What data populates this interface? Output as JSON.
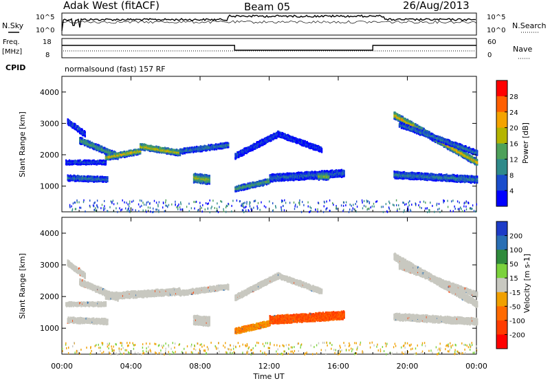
{
  "header": {
    "station": "Adak West (fitACF)",
    "beam": "Beam 05",
    "date": "26/Aug/2013"
  },
  "noise_panel": {
    "left_label": "N.Sky",
    "right_label": "N.Search",
    "left_ticks": [
      "10^5",
      "10^0"
    ],
    "right_ticks": [
      "10^5",
      "10^0"
    ]
  },
  "freq_panel": {
    "left_label_top": "Freq.",
    "left_label_bottom": "[MHz]",
    "right_label": "Nave",
    "left_ticks": [
      "18",
      "8"
    ],
    "right_ticks": [
      "60",
      "0"
    ]
  },
  "cpid": {
    "label": "CPID",
    "text": "normalsound (fast) 157 RF"
  },
  "xaxis": {
    "label": "Time UT",
    "ticks": [
      "00:00",
      "04:00",
      "08:00",
      "12:00",
      "16:00",
      "20:00",
      "00:00"
    ]
  },
  "colors": {
    "background_scatter": "#c8c8c0"
  },
  "chart_data": [
    {
      "type": "heatmap",
      "title": "",
      "ylabel": "Slant Range [km]",
      "xlabel": "",
      "xlim_hours": [
        0,
        24
      ],
      "ylim": [
        180,
        4500
      ],
      "yticks": [
        "1000",
        "2000",
        "3000",
        "4000"
      ],
      "colorbar": {
        "label": "Power [dB]",
        "ticks": [
          "4",
          "8",
          "12",
          "16",
          "20",
          "24",
          "28"
        ],
        "colors": [
          "#0000ff",
          "#1a4dcc",
          "#2f8a8a",
          "#4ea15a",
          "#b4b400",
          "#f4a300",
          "#ff5f00",
          "#ff0000"
        ]
      },
      "echo_bands": [
        {
          "t_start": 0.3,
          "t_end": 1.3,
          "r_start": 3100,
          "r_end": 2700,
          "width": 160,
          "power": 6
        },
        {
          "t_start": 1.0,
          "t_end": 3.2,
          "r_start": 2500,
          "r_end": 2000,
          "width": 180,
          "power": 14
        },
        {
          "t_start": 2.5,
          "t_end": 4.5,
          "r_start": 1950,
          "r_end": 2150,
          "width": 160,
          "power": 21
        },
        {
          "t_start": 4.5,
          "t_end": 6.8,
          "r_start": 2300,
          "r_end": 2100,
          "width": 170,
          "power": 20
        },
        {
          "t_start": 6.8,
          "t_end": 9.6,
          "r_start": 2150,
          "r_end": 2350,
          "width": 150,
          "power": 10
        },
        {
          "t_start": 0.2,
          "t_end": 2.5,
          "r_start": 1800,
          "r_end": 1800,
          "width": 120,
          "power": 6
        },
        {
          "t_start": 0.3,
          "t_end": 2.6,
          "r_start": 1300,
          "r_end": 1250,
          "width": 160,
          "power": 9
        },
        {
          "t_start": 7.6,
          "t_end": 8.5,
          "r_start": 1300,
          "r_end": 1250,
          "width": 280,
          "power": 17
        },
        {
          "t_start": 10.0,
          "t_end": 12.5,
          "r_start": 2000,
          "r_end": 2700,
          "width": 170,
          "power": 6
        },
        {
          "t_start": 12.5,
          "t_end": 15.0,
          "r_start": 2700,
          "r_end": 2200,
          "width": 150,
          "power": 5
        },
        {
          "t_start": 10.0,
          "t_end": 12.0,
          "r_start": 950,
          "r_end": 1200,
          "width": 160,
          "power": 14
        },
        {
          "t_start": 12.0,
          "t_end": 16.3,
          "r_start": 1300,
          "r_end": 1450,
          "width": 220,
          "power": 8
        },
        {
          "t_start": 14.8,
          "t_end": 15.4,
          "r_start": 1350,
          "r_end": 1350,
          "width": 200,
          "power": 17
        },
        {
          "t_start": 19.2,
          "t_end": 24.0,
          "r_start": 3300,
          "r_end": 1800,
          "width": 200,
          "power": 22
        },
        {
          "t_start": 19.5,
          "t_end": 24.0,
          "r_start": 3000,
          "r_end": 2100,
          "width": 150,
          "power": 10
        },
        {
          "t_start": 19.2,
          "t_end": 24.0,
          "r_start": 1400,
          "r_end": 1250,
          "width": 200,
          "power": 10
        }
      ]
    },
    {
      "type": "heatmap",
      "title": "",
      "ylabel": "Slant Range [km]",
      "xlabel": "Time UT",
      "xlim_hours": [
        0,
        24
      ],
      "ylim": [
        180,
        4500
      ],
      "yticks": [
        "1000",
        "2000",
        "3000",
        "4000"
      ],
      "colorbar": {
        "label": "Velocity [m s-1]",
        "ticks": [
          "200",
          "100",
          "50",
          "15",
          "-15",
          "-50",
          "-100",
          "-200"
        ],
        "colors": [
          "#1e3cc8",
          "#2a6fb4",
          "#2f8a3c",
          "#7bd23c",
          "#c8c8c0",
          "#f0a000",
          "#ff6a00",
          "#ff3c00",
          "#ff0000"
        ]
      },
      "echo_bands": [
        {
          "t_start": 0.3,
          "t_end": 1.3,
          "r_start": 3100,
          "r_end": 2700,
          "width": 160,
          "velocity": 0
        },
        {
          "t_start": 1.0,
          "t_end": 3.2,
          "r_start": 2500,
          "r_end": 2000,
          "width": 180,
          "velocity": 0
        },
        {
          "t_start": 2.5,
          "t_end": 6.8,
          "r_start": 2050,
          "r_end": 2200,
          "width": 200,
          "velocity": 0
        },
        {
          "t_start": 6.8,
          "t_end": 9.6,
          "r_start": 2150,
          "r_end": 2350,
          "width": 150,
          "velocity": 0
        },
        {
          "t_start": 0.2,
          "t_end": 2.5,
          "r_start": 1800,
          "r_end": 1800,
          "width": 120,
          "velocity": 0
        },
        {
          "t_start": 0.3,
          "t_end": 2.6,
          "r_start": 1300,
          "r_end": 1250,
          "width": 160,
          "velocity": 0
        },
        {
          "t_start": 7.6,
          "t_end": 8.5,
          "r_start": 1300,
          "r_end": 1250,
          "width": 280,
          "velocity": 0
        },
        {
          "t_start": 10.0,
          "t_end": 12.5,
          "r_start": 2000,
          "r_end": 2700,
          "width": 170,
          "velocity": 0
        },
        {
          "t_start": 12.5,
          "t_end": 15.0,
          "r_start": 2700,
          "r_end": 2200,
          "width": 150,
          "velocity": 0
        },
        {
          "t_start": 10.0,
          "t_end": 12.0,
          "r_start": 950,
          "r_end": 1200,
          "width": 160,
          "velocity": -50
        },
        {
          "t_start": 12.0,
          "t_end": 16.3,
          "r_start": 1300,
          "r_end": 1450,
          "width": 240,
          "velocity": -100
        },
        {
          "t_start": 19.2,
          "t_end": 24.0,
          "r_start": 3300,
          "r_end": 1800,
          "width": 200,
          "velocity": 0
        },
        {
          "t_start": 19.5,
          "t_end": 24.0,
          "r_start": 3000,
          "r_end": 2100,
          "width": 150,
          "velocity": 0
        },
        {
          "t_start": 19.2,
          "t_end": 24.0,
          "r_start": 1400,
          "r_end": 1250,
          "width": 200,
          "velocity": 0
        }
      ]
    }
  ]
}
